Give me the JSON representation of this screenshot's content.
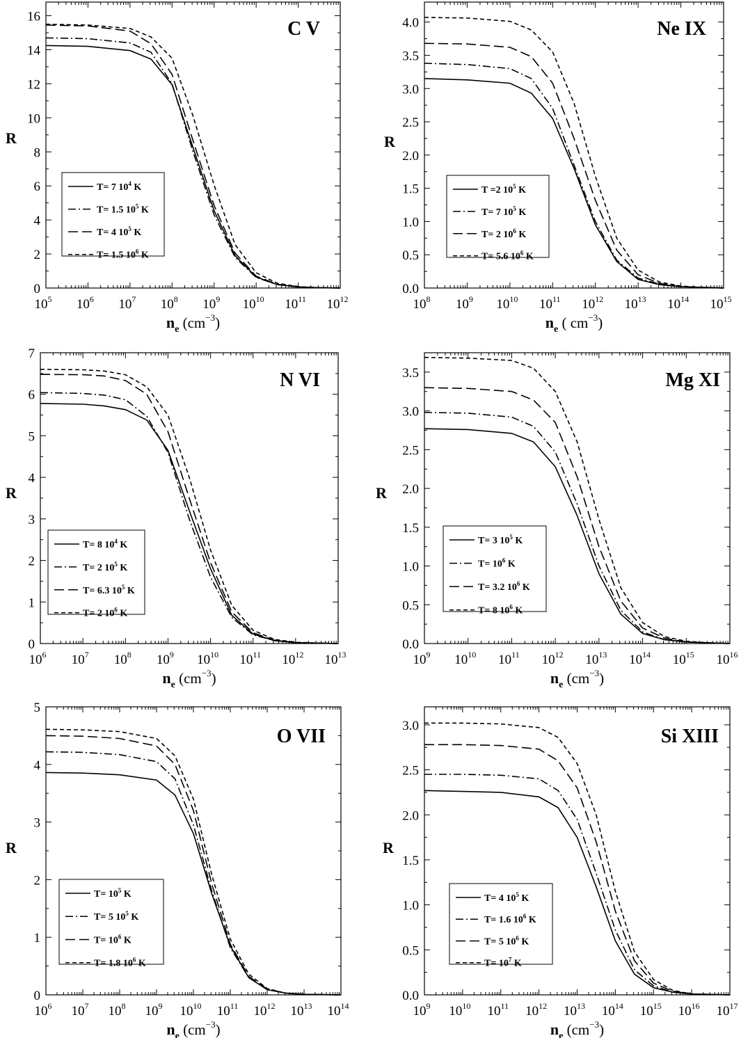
{
  "figure": {
    "panels": [
      {
        "ion": "C V",
        "ylabel": "R",
        "xlabel": {
          "main": "n",
          "sub": "e",
          "unit": "(cm",
          "unit_exp": "−3",
          "unit_close": ")"
        },
        "chart_data": {
          "type": "line",
          "x_scale": "log",
          "xlim_exp": [
            5,
            12
          ],
          "x_ticks": [
            5,
            6,
            7,
            8,
            9,
            10,
            11,
            12
          ],
          "ylim": [
            0,
            16.8
          ],
          "y_ticks": [
            "0",
            "2",
            "4",
            "6",
            "8",
            "10",
            "12",
            "14",
            "16"
          ],
          "log_x": [
            5,
            6,
            7,
            7.5,
            8,
            8.5,
            9,
            9.5,
            10,
            10.5,
            11,
            11.5,
            12
          ],
          "series": [
            {
              "name": "T= 7 10",
              "exp": "4",
              "unit": " K",
              "dash": "solid",
              "values": [
                14.25,
                14.2,
                13.95,
                13.45,
                11.95,
                8.25,
                4.55,
                1.9,
                0.65,
                0.2,
                0.06,
                0.02,
                0.0
              ]
            },
            {
              "name": "T= 1.5 10",
              "exp": "5",
              "unit": " K",
              "dash": "dashdot",
              "values": [
                14.7,
                14.65,
                14.4,
                13.85,
                12.0,
                8.0,
                4.3,
                1.8,
                0.62,
                0.2,
                0.06,
                0.02,
                0.0
              ]
            },
            {
              "name": "T= 4 10",
              "exp": "5",
              "unit": " K",
              "dash": "longdash",
              "values": [
                15.45,
                15.4,
                15.1,
                14.35,
                12.55,
                8.65,
                4.85,
                2.05,
                0.7,
                0.22,
                0.07,
                0.02,
                0.0
              ]
            },
            {
              "name": "T= 1.5 10",
              "exp": "6",
              "unit": " K",
              "dash": "shortdash",
              "values": [
                15.5,
                15.45,
                15.25,
                14.75,
                13.5,
                10.1,
                6.05,
                2.55,
                0.9,
                0.28,
                0.08,
                0.02,
                0.0
              ]
            }
          ]
        }
      },
      {
        "ion": "Ne IX",
        "ylabel": "R",
        "xlabel": {
          "main": "n",
          "sub": "e",
          "unit": "( cm",
          "unit_exp": "−3",
          "unit_close": ")"
        },
        "chart_data": {
          "type": "line",
          "x_scale": "log",
          "xlim_exp": [
            8,
            15
          ],
          "x_ticks": [
            8,
            9,
            10,
            11,
            12,
            13,
            14,
            15
          ],
          "ylim": [
            0,
            4.3
          ],
          "y_ticks": [
            "0.0",
            "0.5",
            "1.0",
            "1.5",
            "2.0",
            "2.5",
            "3.0",
            "3.5",
            "4.0"
          ],
          "log_x": [
            8,
            9,
            10,
            10.5,
            11,
            11.5,
            12,
            12.5,
            13,
            13.5,
            14,
            14.5,
            15
          ],
          "series": [
            {
              "name": "T =2 10",
              "exp": "5",
              "unit": " K",
              "dash": "solid",
              "values": [
                3.15,
                3.13,
                3.08,
                2.93,
                2.55,
                1.8,
                0.95,
                0.4,
                0.13,
                0.05,
                0.02,
                0.01,
                0.0
              ]
            },
            {
              "name": "T= 7 10",
              "exp": "5",
              "unit": " K",
              "dash": "dashdot",
              "values": [
                3.38,
                3.36,
                3.3,
                3.15,
                2.7,
                1.85,
                1.0,
                0.42,
                0.15,
                0.06,
                0.02,
                0.01,
                0.0
              ]
            },
            {
              "name": "T= 2 10",
              "exp": "6",
              "unit": " K",
              "dash": "longdash",
              "values": [
                3.68,
                3.67,
                3.62,
                3.48,
                3.08,
                2.25,
                1.32,
                0.57,
                0.2,
                0.07,
                0.02,
                0.01,
                0.0
              ]
            },
            {
              "name": "T= 5.6 10",
              "exp": "6",
              "unit": " K",
              "dash": "shortdash",
              "values": [
                4.07,
                4.06,
                4.01,
                3.88,
                3.55,
                2.78,
                1.68,
                0.75,
                0.27,
                0.09,
                0.03,
                0.01,
                0.0
              ]
            }
          ]
        }
      },
      {
        "ion": "N VI",
        "ylabel": "R",
        "xlabel": {
          "main": "n",
          "sub": "e",
          "unit": "(cm",
          "unit_exp": "−3",
          "unit_close": ")"
        },
        "chart_data": {
          "type": "line",
          "x_scale": "log",
          "xlim_exp": [
            6,
            13
          ],
          "x_ticks": [
            6,
            7,
            8,
            9,
            10,
            11,
            12,
            13
          ],
          "ylim": [
            0,
            7
          ],
          "y_ticks": [
            "0",
            "1",
            "2",
            "3",
            "4",
            "5",
            "6",
            "7"
          ],
          "log_x": [
            6,
            7,
            7.5,
            8,
            8.5,
            9,
            9.5,
            10,
            10.5,
            11,
            11.5,
            12,
            13
          ],
          "series": [
            {
              "name": "T= 8 10",
              "exp": "4",
              "unit": " K",
              "dash": "solid",
              "values": [
                5.78,
                5.76,
                5.72,
                5.63,
                5.38,
                4.65,
                3.2,
                1.8,
                0.68,
                0.23,
                0.07,
                0.02,
                0.0
              ]
            },
            {
              "name": "T= 2 10",
              "exp": "5",
              "unit": " K",
              "dash": "dashdot",
              "values": [
                6.04,
                6.02,
                5.98,
                5.87,
                5.47,
                4.6,
                3.0,
                1.6,
                0.63,
                0.21,
                0.07,
                0.02,
                0.0
              ]
            },
            {
              "name": "T= 6.3 10",
              "exp": "5",
              "unit": " K",
              "dash": "longdash",
              "values": [
                6.48,
                6.47,
                6.44,
                6.33,
                6.0,
                5.1,
                3.5,
                1.95,
                0.76,
                0.26,
                0.08,
                0.02,
                0.0
              ]
            },
            {
              "name": "T= 2 10",
              "exp": "6",
              "unit": " K",
              "dash": "shortdash",
              "values": [
                6.6,
                6.59,
                6.56,
                6.47,
                6.18,
                5.5,
                4.0,
                2.25,
                0.92,
                0.32,
                0.1,
                0.03,
                0.0
              ]
            }
          ]
        }
      },
      {
        "ion": "Mg XI",
        "ylabel": "R",
        "xlabel": {
          "main": "n",
          "sub": "e",
          "unit": "(cm",
          "unit_exp": "−3",
          "unit_close": ")"
        },
        "chart_data": {
          "type": "line",
          "x_scale": "log",
          "xlim_exp": [
            9,
            16
          ],
          "x_ticks": [
            9,
            10,
            11,
            12,
            13,
            14,
            15,
            16
          ],
          "ylim": [
            0,
            3.75
          ],
          "y_ticks": [
            "0.0",
            "0.5",
            "1.0",
            "1.5",
            "2.0",
            "2.5",
            "3.0",
            "3.5"
          ],
          "log_x": [
            9,
            10,
            11,
            11.5,
            12,
            12.5,
            13,
            13.5,
            14,
            14.5,
            15,
            15.5,
            16
          ],
          "series": [
            {
              "name": "T= 3 10",
              "exp": "5",
              "unit": " K",
              "dash": "solid",
              "values": [
                2.77,
                2.76,
                2.71,
                2.6,
                2.28,
                1.65,
                0.9,
                0.38,
                0.13,
                0.05,
                0.02,
                0.01,
                0.0
              ]
            },
            {
              "name": "T= 10",
              "exp": "6",
              "unit": " K",
              "dash": "dashdot",
              "values": [
                2.98,
                2.97,
                2.92,
                2.8,
                2.47,
                1.8,
                1.0,
                0.43,
                0.15,
                0.05,
                0.02,
                0.01,
                0.0
              ]
            },
            {
              "name": "T= 3.2 10",
              "exp": "6",
              "unit": " K",
              "dash": "longdash",
              "values": [
                3.3,
                3.29,
                3.25,
                3.14,
                2.85,
                2.15,
                1.25,
                0.55,
                0.2,
                0.07,
                0.02,
                0.01,
                0.0
              ]
            },
            {
              "name": "T= 8 10",
              "exp": "6",
              "unit": " K",
              "dash": "shortdash",
              "values": [
                3.69,
                3.68,
                3.65,
                3.55,
                3.25,
                2.6,
                1.6,
                0.72,
                0.27,
                0.09,
                0.03,
                0.01,
                0.0
              ]
            }
          ]
        }
      },
      {
        "ion": "O VII",
        "ylabel": "R",
        "xlabel": {
          "main": "n",
          "sub": "e",
          "unit": "(cm",
          "unit_exp": "−3",
          "unit_close": ")"
        },
        "chart_data": {
          "type": "line",
          "x_scale": "log",
          "xlim_exp": [
            6,
            14
          ],
          "x_ticks": [
            6,
            7,
            8,
            9,
            10,
            11,
            12,
            13,
            14
          ],
          "ylim": [
            0,
            5
          ],
          "y_ticks": [
            "0",
            "1",
            "2",
            "3",
            "4",
            "5"
          ],
          "log_x": [
            6,
            7,
            8,
            9,
            9.5,
            10,
            10.5,
            11,
            11.5,
            12,
            12.5,
            13,
            14
          ],
          "series": [
            {
              "name": "T= 10",
              "exp": "5",
              "unit": " K",
              "dash": "solid",
              "values": [
                3.86,
                3.85,
                3.82,
                3.73,
                3.47,
                2.8,
                1.75,
                0.85,
                0.3,
                0.09,
                0.03,
                0.01,
                0.0
              ]
            },
            {
              "name": "T= 5 10",
              "exp": "5",
              "unit": " K",
              "dash": "dashdot",
              "values": [
                4.22,
                4.21,
                4.17,
                4.05,
                3.75,
                2.95,
                1.8,
                0.82,
                0.3,
                0.09,
                0.03,
                0.01,
                0.0
              ]
            },
            {
              "name": "T= 10",
              "exp": "6",
              "unit": " K",
              "dash": "longdash",
              "values": [
                4.5,
                4.49,
                4.45,
                4.32,
                4.0,
                3.2,
                1.92,
                0.88,
                0.32,
                0.1,
                0.03,
                0.01,
                0.0
              ]
            },
            {
              "name": "T= 1.8 10",
              "exp": "6",
              "unit": " K",
              "dash": "shortdash",
              "values": [
                4.61,
                4.6,
                4.57,
                4.45,
                4.15,
                3.4,
                2.08,
                0.97,
                0.36,
                0.11,
                0.03,
                0.01,
                0.0
              ]
            }
          ]
        }
      },
      {
        "ion": "Si XIII",
        "ylabel": "R",
        "xlabel": {
          "main": "n",
          "sub": "e",
          "unit": "(cm",
          "unit_exp": "−3",
          "unit_close": ")"
        },
        "chart_data": {
          "type": "line",
          "x_scale": "log",
          "xlim_exp": [
            9,
            17
          ],
          "x_ticks": [
            9,
            10,
            11,
            12,
            13,
            14,
            15,
            16,
            17
          ],
          "ylim": [
            0,
            3.2
          ],
          "y_ticks": [
            "0.0",
            "0.5",
            "1.0",
            "1.5",
            "2.0",
            "2.5",
            "3.0"
          ],
          "log_x": [
            9,
            10,
            11,
            12,
            12.5,
            13,
            13.5,
            14,
            14.5,
            15,
            15.5,
            16,
            17
          ],
          "series": [
            {
              "name": "T= 4 10",
              "exp": "5",
              "unit": " K",
              "dash": "solid",
              "values": [
                2.27,
                2.26,
                2.25,
                2.2,
                2.08,
                1.75,
                1.2,
                0.6,
                0.23,
                0.08,
                0.03,
                0.01,
                0.0
              ]
            },
            {
              "name": "T= 1.6 10",
              "exp": "6",
              "unit": " K",
              "dash": "dashdot",
              "values": [
                2.45,
                2.45,
                2.44,
                2.4,
                2.27,
                1.95,
                1.35,
                0.72,
                0.28,
                0.1,
                0.03,
                0.01,
                0.0
              ]
            },
            {
              "name": "T= 5 10",
              "exp": "6",
              "unit": " K",
              "dash": "longdash",
              "values": [
                2.78,
                2.78,
                2.77,
                2.73,
                2.6,
                2.3,
                1.7,
                0.93,
                0.38,
                0.13,
                0.04,
                0.01,
                0.0
              ]
            },
            {
              "name": "T= 10",
              "exp": "7",
              "unit": " K",
              "dash": "shortdash",
              "values": [
                3.02,
                3.02,
                3.01,
                2.97,
                2.86,
                2.57,
                2.0,
                1.15,
                0.48,
                0.17,
                0.05,
                0.01,
                0.0
              ]
            }
          ]
        }
      }
    ]
  }
}
